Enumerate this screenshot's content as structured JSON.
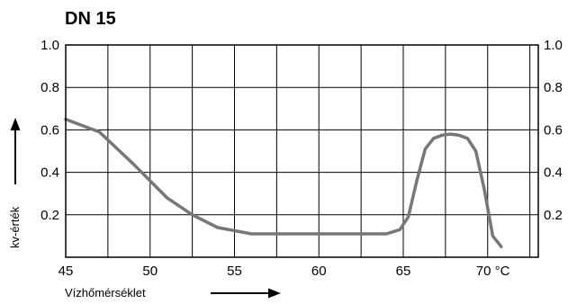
{
  "chart_data": {
    "type": "line",
    "title": "DN 15",
    "xlabel": "Vízhőmérséklet",
    "ylabel": "kv-érték",
    "xlim": [
      45,
      73
    ],
    "ylim": [
      0,
      1.0
    ],
    "x_ticks": [
      45,
      50,
      55,
      60,
      65,
      70
    ],
    "x_tick_labels": [
      "45",
      "50",
      "55",
      "60",
      "65",
      "70 °C"
    ],
    "y_ticks": [
      0.2,
      0.4,
      0.6,
      0.8,
      1.0
    ],
    "y_tick_labels": [
      "0.2",
      "0.4",
      "0.6",
      "0.8",
      "1.0"
    ],
    "right_y_tick_labels": [
      "0.2",
      "0.4",
      "0.6",
      "0.8",
      "1.0"
    ],
    "x_grid_step": 2.5,
    "y_grid_step": 0.2,
    "grid": true,
    "line_color": "#777777",
    "grid_color": "#000000",
    "series": [
      {
        "x": [
          45,
          47,
          49,
          51,
          52.5,
          54,
          56,
          58,
          60,
          62,
          64,
          64.8,
          65.3,
          65.8,
          66.3,
          66.8,
          67.3,
          67.8,
          68.3,
          68.8,
          69.3,
          69.8,
          70.3,
          70.8
        ],
        "y": [
          0.65,
          0.59,
          0.44,
          0.28,
          0.2,
          0.14,
          0.11,
          0.11,
          0.11,
          0.11,
          0.11,
          0.13,
          0.19,
          0.36,
          0.51,
          0.56,
          0.575,
          0.58,
          0.575,
          0.56,
          0.5,
          0.32,
          0.1,
          0.05
        ]
      }
    ]
  }
}
